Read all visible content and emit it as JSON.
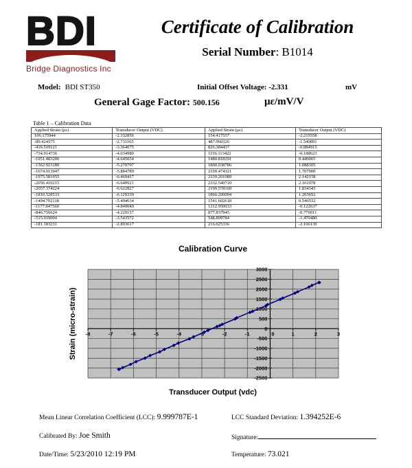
{
  "logo": {
    "text": "BDI",
    "subtext": "Bridge Diagnostics Inc",
    "brand_color": "#8e1b1e"
  },
  "header": {
    "title": "Certificate of Calibration",
    "serial_label": "Serial Number",
    "serial_rest": ": B1014"
  },
  "info": {
    "model_label": "Model:",
    "model_value": "BDI ST350",
    "offset_label": "Initial Offset Voltage:",
    "offset_value": "-2.331",
    "offset_unit": "mV",
    "gage_label": "General Gage Factor:",
    "gage_value": "500.156",
    "gage_unit": "με/mV/V"
  },
  "table": {
    "caption": "Table 1 – Calibration Data",
    "headers": [
      "Applied Strain (με)",
      "Transducer Output (VDC)",
      "Applied Strain (με)",
      "Transducer Output (VDC)"
    ],
    "rows": [
      [
        "106.175944",
        "-2.332856",
        "154.417557",
        "-2.215558"
      ],
      [
        "-89.424575",
        "-2.731165",
        "487.960326",
        "-1.540891"
      ],
      [
        "-416.519121",
        "-3.364075",
        "826.384437",
        "-0.884915"
      ],
      [
        "-734.914736",
        "-4.034980",
        "1156.113422",
        "-0.188623"
      ],
      [
        "-1051.483206",
        "-4.645034",
        "1480.818101",
        "0.440065"
      ],
      [
        "-1362.923180",
        "-5.270797",
        "1800.038786",
        "1.088305"
      ],
      [
        "-1674.013947",
        "-5.884789",
        "2109.474321",
        "1.707000"
      ],
      [
        "-1975.581055",
        "-6.469417",
        "2339.201089",
        "2.142158"
      ],
      [
        "-2056.410215",
        "-6.649921",
        "2332.540710",
        "2.161078"
      ],
      [
        "-2057.374224",
        "-6.622827",
        "2190.578169",
        "1.834343"
      ],
      [
        "-1810.528533",
        "-6.129339",
        "1866.200094",
        "1.203652"
      ],
      [
        "-1494.702118",
        "-5.494634",
        "1541.602618",
        "0.546532"
      ],
      [
        "-1177.847560",
        "-4.849049",
        "1212.950033",
        "-0.122637"
      ],
      [
        "-846.756624",
        "-4.229157",
        "877.837945",
        "-0.770911"
      ],
      [
        "-515.919004",
        "-3.543572",
        "548.899784",
        "-1.470480"
      ],
      [
        "-181.183231",
        "-2.893617",
        "216.625336",
        "-2.106139"
      ]
    ]
  },
  "chart_data": {
    "type": "line",
    "title": "Calibration Curve",
    "xlabel": "Transducer Output (vdc)",
    "ylabel": "Strain (micro-strain)",
    "xlim": [
      -8,
      3
    ],
    "x_tick_step": 1,
    "ylim": [
      -2500,
      3000
    ],
    "y_tick_step": 500,
    "grid": true,
    "legend": false,
    "plot_bg": "#c0c0c0",
    "series": [
      {
        "name": "Calibration",
        "color": "#000080",
        "marker": "diamond",
        "points": [
          [
            -6.649921,
            -2056.410215
          ],
          [
            -6.622827,
            -2057.374224
          ],
          [
            -6.469417,
            -1975.581055
          ],
          [
            -6.129339,
            -1810.528533
          ],
          [
            -5.884789,
            -1674.013947
          ],
          [
            -5.494634,
            -1494.702118
          ],
          [
            -5.270797,
            -1362.92318
          ],
          [
            -4.849049,
            -1177.84756
          ],
          [
            -4.645034,
            -1051.483206
          ],
          [
            -4.229157,
            -846.756624
          ],
          [
            -4.03498,
            -734.914736
          ],
          [
            -3.543572,
            -515.919004
          ],
          [
            -3.364075,
            -416.519121
          ],
          [
            -2.893617,
            -181.183231
          ],
          [
            -2.731165,
            -89.424575
          ],
          [
            -2.332856,
            106.175944
          ],
          [
            -2.215558,
            154.417557
          ],
          [
            -2.106139,
            216.625336
          ],
          [
            -1.540891,
            487.960326
          ],
          [
            -1.47048,
            548.899784
          ],
          [
            -0.884915,
            826.384437
          ],
          [
            -0.770911,
            877.837945
          ],
          [
            -0.188623,
            1156.113422
          ],
          [
            -0.122637,
            1212.950033
          ],
          [
            0.440065,
            1480.818101
          ],
          [
            0.546532,
            1541.602618
          ],
          [
            1.088305,
            1800.038786
          ],
          [
            1.203652,
            1866.200094
          ],
          [
            1.707,
            2109.474321
          ],
          [
            1.834343,
            2190.578169
          ],
          [
            2.142158,
            2339.201089
          ],
          [
            2.161078,
            2332.54071
          ]
        ]
      }
    ]
  },
  "footer": {
    "lcc_label": "Mean Linear Correlation Coefficient (LCC): ",
    "lcc_value": "9.999787E-1",
    "std_label": "LCC Standard Deviation: ",
    "std_value": "1.394252E-6",
    "calibrated_label": "Calibrated By: ",
    "calibrated_value": "Joe Smith",
    "signature_label": "Signature:",
    "datetime_label": "Date/Time: ",
    "datetime_value": "5/23/2010   12:19 PM",
    "temperature_label": "Temperature: ",
    "temperature_value": "73.021"
  }
}
